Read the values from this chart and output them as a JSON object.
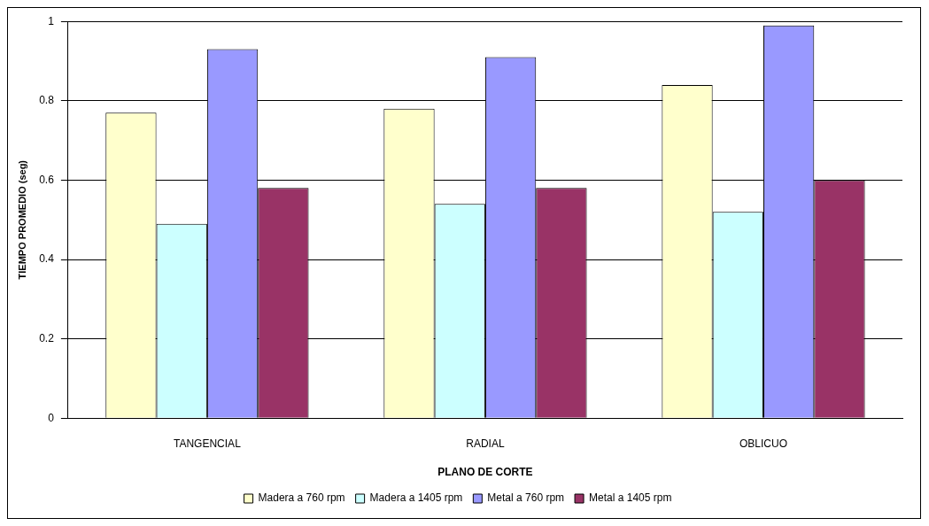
{
  "chart_data": {
    "type": "bar",
    "xlabel": "PLANO DE CORTE",
    "ylabel": "TIEMPO PROMEDIO (seg)",
    "categories": [
      "TANGENCIAL",
      "RADIAL",
      "OBLICUO"
    ],
    "series": [
      {
        "name": "Madera a 760 rpm",
        "color": "#ffffcc",
        "values": [
          0.77,
          0.78,
          0.84
        ]
      },
      {
        "name": "Madera a 1405 rpm",
        "color": "#ccffff",
        "values": [
          0.49,
          0.54,
          0.52
        ]
      },
      {
        "name": "Metal a 760 rpm",
        "color": "#9999ff",
        "values": [
          0.93,
          0.91,
          0.99
        ]
      },
      {
        "name": "Metal a 1405 rpm",
        "color": "#993366",
        "values": [
          0.58,
          0.58,
          0.6
        ]
      }
    ],
    "ylim": [
      0,
      1
    ],
    "yticks": [
      0,
      0.2,
      0.4,
      0.6,
      0.8,
      1
    ],
    "grid": "y",
    "legend": "bottom"
  }
}
